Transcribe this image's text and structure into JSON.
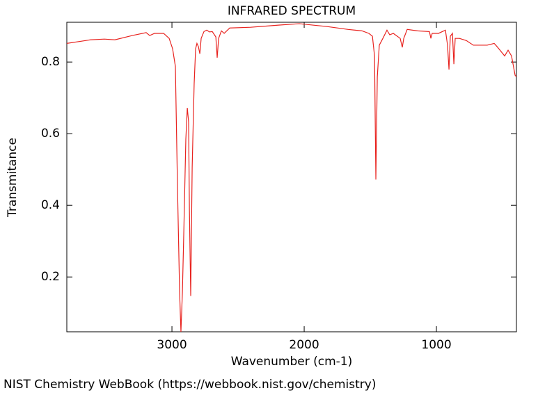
{
  "chart_data": {
    "type": "line",
    "title": "INFRARED SPECTRUM",
    "x_label": "Wavenumber (cm-1)",
    "y_label": "Transmitance",
    "source": "NIST Chemistry WebBook (https://webbook.nist.gov/chemistry)",
    "color": "#e8231f",
    "xlim": [
      3795,
      395
    ],
    "ylim": [
      0.047,
      0.911
    ],
    "xticks": [
      3000,
      2000,
      1000
    ],
    "yticks": [
      0.2,
      0.4,
      0.6,
      0.8
    ],
    "x": [
      3795,
      3616,
      3511,
      3432,
      3300,
      3195,
      3168,
      3132,
      3063,
      3021,
      2995,
      2974,
      2958,
      2942,
      2932,
      2921,
      2911,
      2895,
      2884,
      2874,
      2868,
      2858,
      2847,
      2832,
      2821,
      2811,
      2800,
      2789,
      2779,
      2758,
      2737,
      2716,
      2695,
      2668,
      2658,
      2647,
      2626,
      2605,
      2563,
      2405,
      2195,
      2037,
      1826,
      1668,
      1563,
      1511,
      1484,
      1468,
      1458,
      1447,
      1432,
      1405,
      1374,
      1353,
      1326,
      1274,
      1258,
      1247,
      1221,
      1142,
      1053,
      1042,
      1032,
      984,
      932,
      916,
      905,
      895,
      879,
      868,
      858,
      826,
      774,
      721,
      616,
      563,
      537,
      484,
      458,
      432,
      405,
      395
    ],
    "values": [
      0.852,
      0.862,
      0.864,
      0.862,
      0.874,
      0.882,
      0.874,
      0.88,
      0.88,
      0.866,
      0.837,
      0.788,
      0.449,
      0.157,
      0.047,
      0.157,
      0.313,
      0.584,
      0.672,
      0.633,
      0.39,
      0.147,
      0.507,
      0.74,
      0.837,
      0.852,
      0.843,
      0.823,
      0.866,
      0.885,
      0.889,
      0.884,
      0.885,
      0.87,
      0.812,
      0.866,
      0.887,
      0.88,
      0.895,
      0.897,
      0.903,
      0.907,
      0.899,
      0.891,
      0.887,
      0.88,
      0.872,
      0.817,
      0.472,
      0.759,
      0.847,
      0.866,
      0.889,
      0.876,
      0.88,
      0.866,
      0.841,
      0.866,
      0.891,
      0.887,
      0.885,
      0.866,
      0.88,
      0.88,
      0.889,
      0.847,
      0.779,
      0.872,
      0.88,
      0.794,
      0.866,
      0.866,
      0.86,
      0.847,
      0.847,
      0.852,
      0.841,
      0.817,
      0.833,
      0.817,
      0.763,
      0.759
    ]
  }
}
